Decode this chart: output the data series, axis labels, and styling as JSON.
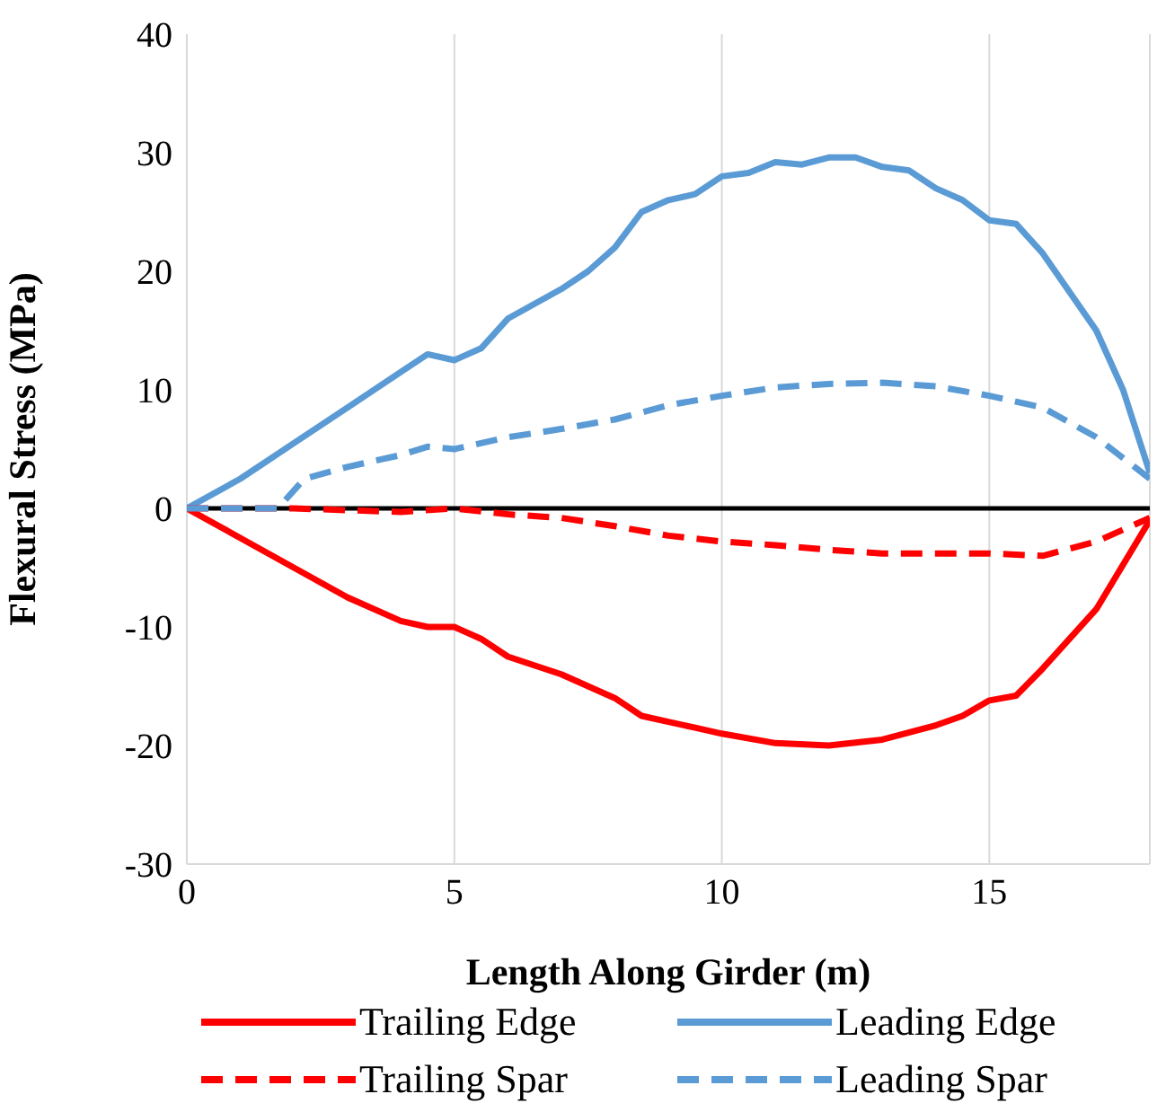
{
  "chart_data": {
    "type": "line",
    "xlabel": "Length Along Girder (m)",
    "ylabel": "Flexural Stress (MPa)",
    "xlim": [
      0,
      18
    ],
    "xticks": [
      0,
      5,
      10,
      15
    ],
    "ylim": [
      -30,
      40
    ],
    "yticks": [
      -30,
      -20,
      -10,
      0,
      10,
      20,
      30,
      40
    ],
    "grid": "x",
    "legend": "bottom",
    "marker": "none",
    "ref_lines": [
      {
        "axis": "y",
        "value": 0,
        "color": "#000000"
      }
    ],
    "series": [
      {
        "name": "Trailing Edge",
        "color": "#ff0000",
        "line_style": "solid",
        "x": [
          0,
          1,
          2,
          3,
          4,
          4.5,
          5,
          5.5,
          6,
          7,
          7.5,
          8,
          8.5,
          9,
          9.5,
          10,
          11,
          12,
          13,
          14,
          14.5,
          15,
          15.5,
          16,
          17,
          18
        ],
        "values": [
          0,
          -2.5,
          -5,
          -7.5,
          -9.5,
          -10,
          -10,
          -11,
          -12.5,
          -14,
          -15,
          -16,
          -17.5,
          -18,
          -18.5,
          -19,
          -19.8,
          -20,
          -19.5,
          -18.3,
          -17.5,
          -16.2,
          -15.8,
          -13.5,
          -8.5,
          -1
        ]
      },
      {
        "name": "Leading Edge",
        "color": "#5b9bd5",
        "line_style": "solid",
        "x": [
          0,
          1,
          2,
          3,
          4,
          4.5,
          5,
          5.5,
          6,
          7,
          7.5,
          8,
          8.5,
          9,
          9.5,
          10,
          10.5,
          11,
          11.5,
          12,
          12.5,
          13,
          13.5,
          14,
          14.5,
          15,
          15.5,
          16,
          17,
          17.5,
          18
        ],
        "values": [
          0,
          2.5,
          5.5,
          8.5,
          11.5,
          13,
          12.5,
          13.5,
          16,
          18.5,
          20,
          22,
          25,
          26,
          26.5,
          28,
          28.3,
          29.2,
          29,
          29.6,
          29.6,
          28.8,
          28.5,
          27,
          26,
          24.3,
          24,
          21.5,
          15,
          10,
          3
        ]
      },
      {
        "name": "Trailing Spar",
        "color": "#ff0000",
        "line_style": "dashed",
        "x": [
          0,
          2,
          4,
          5,
          6,
          7,
          8,
          9,
          10,
          11,
          12,
          13,
          14,
          15,
          16,
          17,
          18
        ],
        "values": [
          0,
          0,
          -0.3,
          0,
          -0.5,
          -0.8,
          -1.5,
          -2.3,
          -2.8,
          -3.1,
          -3.5,
          -3.8,
          -3.8,
          -3.8,
          -4,
          -2.8,
          -0.8
        ]
      },
      {
        "name": "Leading Spar",
        "color": "#5b9bd5",
        "line_style": "dashed",
        "x": [
          0,
          1.7,
          2.2,
          3,
          4,
          4.5,
          5,
          6,
          7,
          8,
          9,
          10,
          11,
          12,
          13,
          14,
          15,
          16,
          17,
          18
        ],
        "values": [
          0,
          0,
          2.5,
          3.5,
          4.5,
          5.2,
          5,
          6,
          6.7,
          7.5,
          8.7,
          9.5,
          10.2,
          10.5,
          10.6,
          10.3,
          9.5,
          8.5,
          6,
          2.5
        ]
      }
    ]
  }
}
